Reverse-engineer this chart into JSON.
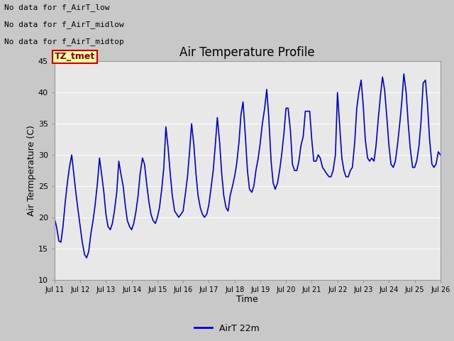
{
  "title": "Air Temperature Profile",
  "xlabel": "Time",
  "ylabel": "Air Termperature (C)",
  "ylim": [
    10,
    45
  ],
  "yticks": [
    10,
    15,
    20,
    25,
    30,
    35,
    40,
    45
  ],
  "line_color": "#0000cc",
  "legend_label": "AirT 22m",
  "annotations": [
    "No data for f_AirT_low",
    "No data for f_AirT_midlow",
    "No data for f_AirT_midtop"
  ],
  "tz_label": "TZ_tmet",
  "x_tick_labels": [
    "Jul 11",
    "Jul 12",
    "Jul 13",
    "Jul 14",
    "Jul 15",
    "Jul 16",
    "Jul 17",
    "Jul 18",
    "Jul 19",
    "Jul 20",
    "Jul 21",
    "Jul 22",
    "Jul 23",
    "Jul 24",
    "Jul 25",
    "Jul 26"
  ],
  "time_days": [
    0.0,
    0.08,
    0.17,
    0.25,
    0.33,
    0.42,
    0.5,
    0.58,
    0.67,
    0.75,
    0.83,
    0.92,
    1.0,
    1.08,
    1.17,
    1.25,
    1.33,
    1.42,
    1.5,
    1.58,
    1.67,
    1.75,
    1.83,
    1.92,
    2.0,
    2.08,
    2.17,
    2.25,
    2.33,
    2.42,
    2.5,
    2.58,
    2.67,
    2.75,
    2.83,
    2.92,
    3.0,
    3.08,
    3.17,
    3.25,
    3.33,
    3.42,
    3.5,
    3.58,
    3.67,
    3.75,
    3.83,
    3.92,
    4.0,
    4.08,
    4.17,
    4.25,
    4.33,
    4.42,
    4.5,
    4.58,
    4.67,
    4.75,
    4.83,
    4.92,
    5.0,
    5.08,
    5.17,
    5.25,
    5.33,
    5.42,
    5.5,
    5.58,
    5.67,
    5.75,
    5.83,
    5.92,
    6.0,
    6.08,
    6.17,
    6.25,
    6.33,
    6.42,
    6.5,
    6.58,
    6.67,
    6.75,
    6.83,
    6.92,
    7.0,
    7.08,
    7.17,
    7.25,
    7.33,
    7.42,
    7.5,
    7.58,
    7.67,
    7.75,
    7.83,
    7.92,
    8.0,
    8.08,
    8.17,
    8.25,
    8.33,
    8.42,
    8.5,
    8.58,
    8.67,
    8.75,
    8.83,
    8.92,
    9.0,
    9.08,
    9.17,
    9.25,
    9.33,
    9.42,
    9.5,
    9.58,
    9.67,
    9.75,
    9.83,
    9.92,
    10.0,
    10.08,
    10.17,
    10.25,
    10.33,
    10.42,
    10.5,
    10.58,
    10.67,
    10.75,
    10.83,
    10.92,
    11.0,
    11.08,
    11.17,
    11.25,
    11.33,
    11.42,
    11.5,
    11.58,
    11.67,
    11.75,
    11.83,
    11.92,
    12.0,
    12.08,
    12.17,
    12.25,
    12.33,
    12.42,
    12.5,
    12.58,
    12.67,
    12.75,
    12.83,
    12.92,
    13.0,
    13.08,
    13.17,
    13.25,
    13.33,
    13.42,
    13.5,
    13.58,
    13.67,
    13.75,
    13.83,
    13.92,
    14.0,
    14.08,
    14.17,
    14.25,
    14.33,
    14.42,
    14.5,
    14.58,
    14.67,
    14.75,
    14.83,
    14.92,
    15.0
  ],
  "temp_values": [
    19.8,
    18.5,
    16.2,
    16.0,
    18.5,
    22.5,
    25.5,
    28.0,
    30.0,
    27.0,
    24.0,
    21.0,
    18.5,
    16.0,
    14.0,
    13.5,
    14.5,
    17.5,
    19.5,
    22.0,
    25.5,
    29.5,
    27.0,
    24.0,
    20.5,
    18.5,
    18.0,
    19.0,
    21.0,
    24.0,
    29.0,
    27.0,
    25.0,
    22.0,
    19.5,
    18.5,
    18.0,
    19.0,
    21.0,
    23.5,
    27.0,
    29.5,
    28.5,
    25.5,
    22.5,
    20.5,
    19.5,
    19.0,
    20.0,
    21.5,
    24.5,
    28.0,
    34.5,
    31.0,
    27.0,
    23.5,
    21.0,
    20.5,
    20.0,
    20.5,
    21.0,
    23.5,
    26.5,
    30.5,
    35.0,
    31.5,
    27.0,
    23.5,
    21.5,
    20.5,
    20.0,
    20.5,
    22.0,
    24.5,
    27.5,
    31.5,
    36.0,
    32.0,
    27.0,
    23.5,
    21.5,
    21.0,
    23.5,
    25.0,
    26.5,
    28.5,
    32.0,
    36.5,
    38.5,
    33.0,
    27.5,
    24.5,
    24.0,
    25.0,
    27.5,
    29.5,
    32.0,
    35.0,
    37.5,
    40.5,
    36.0,
    29.0,
    25.5,
    24.5,
    25.5,
    27.5,
    30.0,
    33.5,
    37.5,
    37.5,
    34.0,
    28.5,
    27.5,
    27.5,
    29.0,
    31.5,
    33.0,
    37.0,
    37.0,
    37.0,
    32.5,
    29.0,
    29.0,
    30.0,
    29.5,
    28.0,
    27.5,
    27.0,
    26.5,
    26.5,
    27.5,
    30.0,
    40.0,
    35.0,
    29.5,
    27.5,
    26.5,
    26.5,
    27.5,
    28.0,
    32.0,
    37.5,
    40.0,
    42.0,
    38.0,
    32.5,
    29.5,
    29.0,
    29.5,
    29.0,
    31.5,
    35.5,
    39.5,
    42.5,
    40.5,
    36.0,
    31.5,
    28.5,
    28.0,
    29.0,
    31.5,
    35.0,
    38.5,
    43.0,
    40.0,
    35.0,
    31.0,
    28.0,
    28.0,
    29.0,
    31.5,
    35.5,
    41.5,
    42.0,
    38.0,
    32.5,
    28.5,
    28.0,
    28.5,
    30.5,
    30.0
  ]
}
